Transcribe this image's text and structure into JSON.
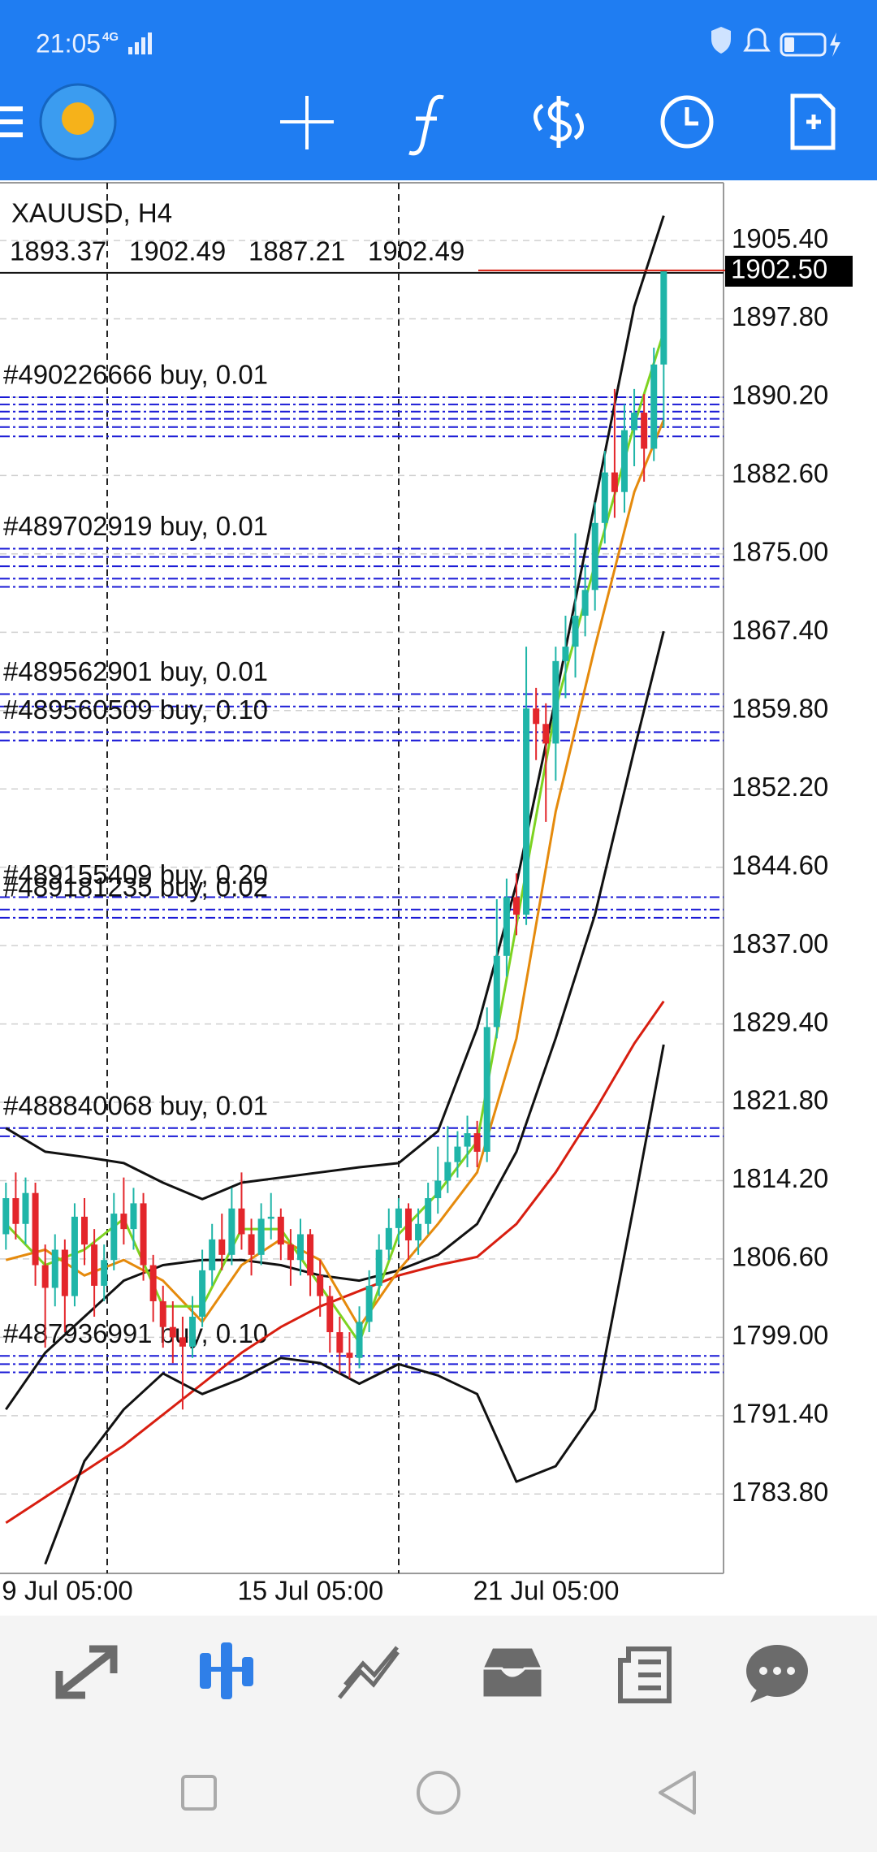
{
  "status_bar": {
    "time": "21:05",
    "network": "4G"
  },
  "chart_data": {
    "type": "candlestick",
    "symbol": "XAUUSD, H4",
    "last_ohlc": [
      1893.37,
      1902.49,
      1887.21,
      1902.49
    ],
    "bull_color": "#1fb5a8",
    "bear_color": "#e3262b",
    "open": [
      1809.0,
      1812.5,
      1810.0,
      1813.0,
      1806.0,
      1803.8,
      1807.5,
      1803.0,
      1810.7,
      1808.0,
      1804.0,
      1806.5,
      1811.0,
      1809.5,
      1812.0,
      1806.0,
      1802.5,
      1800.0,
      1799.0,
      1798.1,
      1801.0,
      1805.5,
      1808.5,
      1807.0,
      1811.5,
      1809.0,
      1807.0,
      1810.5,
      1810.7,
      1808.0,
      1806.5,
      1809.0,
      1805.0,
      1803.0,
      1799.5,
      1797.5,
      1797.0,
      1800.5,
      1804.0,
      1807.5,
      1809.6,
      1811.5,
      1808.4,
      1810.0,
      1812.5,
      1814.2,
      1816.0,
      1817.5,
      1818.8,
      1817.0,
      1829.1,
      1836.0,
      1841.7,
      1840.0,
      1860.0,
      1858.5,
      1856.6,
      1864.6,
      1866.0,
      1869.0,
      1871.5,
      1878.0,
      1882.9,
      1881.0,
      1887.0,
      1888.7,
      1885.2
    ],
    "high": [
      1814.0,
      1815.0,
      1814.5,
      1814.0,
      1808.0,
      1809.0,
      1808.5,
      1812.0,
      1812.5,
      1809.5,
      1808.0,
      1813.0,
      1814.5,
      1813.5,
      1813.0,
      1807.0,
      1804.0,
      1802.5,
      1801.0,
      1803.0,
      1807.5,
      1810.0,
      1811.0,
      1813.5,
      1815.0,
      1810.5,
      1812.0,
      1813.0,
      1811.5,
      1809.5,
      1810.5,
      1809.5,
      1806.5,
      1804.0,
      1801.0,
      1799.5,
      1802.0,
      1805.5,
      1809.0,
      1811.5,
      1812.5,
      1812.0,
      1811.5,
      1814.0,
      1817.5,
      1819.5,
      1819.0,
      1820.5,
      1820.0,
      1831.0,
      1841.5,
      1843.5,
      1844.0,
      1866.0,
      1862.0,
      1860.5,
      1866.0,
      1869.0,
      1877.0,
      1874.0,
      1880.0,
      1885.0,
      1891.0,
      1889.5,
      1891.0,
      1890.5,
      1895.0
    ],
    "low": [
      1807.5,
      1808.5,
      1808.0,
      1804.0,
      1798.0,
      1802.0,
      1799.5,
      1802.0,
      1806.0,
      1801.0,
      1802.5,
      1805.5,
      1808.0,
      1807.5,
      1804.5,
      1800.5,
      1798.0,
      1796.5,
      1792.0,
      1797.0,
      1800.0,
      1804.0,
      1805.5,
      1806.0,
      1807.5,
      1805.0,
      1806.0,
      1808.5,
      1806.5,
      1804.0,
      1805.0,
      1803.0,
      1801.0,
      1797.5,
      1795.5,
      1795.0,
      1796.0,
      1799.5,
      1803.0,
      1806.5,
      1808.0,
      1806.5,
      1807.0,
      1809.0,
      1811.0,
      1813.0,
      1814.5,
      1815.5,
      1815.5,
      1816.0,
      1828.0,
      1834.0,
      1838.0,
      1839.0,
      1855.0,
      1849.0,
      1853.0,
      1861.0,
      1863.0,
      1867.0,
      1869.5,
      1876.0,
      1878.5,
      1879.0,
      1883.5,
      1882.0,
      1884.0
    ],
    "close": [
      1812.5,
      1810.0,
      1813.0,
      1806.0,
      1803.8,
      1807.5,
      1803.0,
      1810.7,
      1808.0,
      1804.0,
      1806.5,
      1811.0,
      1809.5,
      1812.0,
      1806.0,
      1802.5,
      1800.0,
      1799.0,
      1798.1,
      1801.0,
      1805.5,
      1808.5,
      1807.0,
      1811.5,
      1809.0,
      1807.0,
      1810.5,
      1810.7,
      1808.0,
      1806.5,
      1809.0,
      1805.0,
      1803.0,
      1799.5,
      1797.5,
      1797.0,
      1800.5,
      1804.0,
      1807.5,
      1809.6,
      1811.5,
      1808.4,
      1810.0,
      1812.5,
      1814.2,
      1816.0,
      1817.5,
      1818.8,
      1817.0,
      1829.1,
      1836.0,
      1841.7,
      1840.0,
      1860.0,
      1858.5,
      1856.6,
      1864.6,
      1866.0,
      1869.0,
      1871.5,
      1878.0,
      1882.9,
      1881.0,
      1887.0,
      1888.7,
      1885.2,
      1893.37
    ],
    "ylim": [
      1776.1,
      1911.0
    ],
    "yticks": [
      {
        "value": 1905.4,
        "label": "1905.40"
      },
      {
        "value": 1897.8,
        "label": "1897.80"
      },
      {
        "value": 1890.2,
        "label": "1890.20"
      },
      {
        "value": 1882.6,
        "label": "1882.60"
      },
      {
        "value": 1875.0,
        "label": "1875.00"
      },
      {
        "value": 1867.4,
        "label": "1867.40"
      },
      {
        "value": 1859.8,
        "label": "1859.80"
      },
      {
        "value": 1852.2,
        "label": "1852.20"
      },
      {
        "value": 1844.6,
        "label": "1844.60"
      },
      {
        "value": 1837.0,
        "label": "1837.00"
      },
      {
        "value": 1829.4,
        "label": "1829.40"
      },
      {
        "value": 1821.8,
        "label": "1821.80"
      },
      {
        "value": 1814.2,
        "label": "1814.20"
      },
      {
        "value": 1806.6,
        "label": "1806.60"
      },
      {
        "value": 1799.0,
        "label": "1799.00"
      },
      {
        "value": 1791.4,
        "label": "1791.40"
      },
      {
        "value": 1783.8,
        "label": "1783.80"
      }
    ],
    "grid": true,
    "xticks": [
      {
        "value": 0,
        "label": "9 Jul 05:00"
      },
      {
        "value": 24,
        "label": "15 Jul 05:00"
      },
      {
        "value": 48,
        "label": "21 Jul 05:00"
      }
    ],
    "current_price": {
      "value": 1902.5,
      "label": "1902.50"
    },
    "indicators": {
      "x": [
        0,
        4,
        8,
        12,
        16,
        20,
        24,
        28,
        32,
        36,
        40,
        44,
        48,
        52,
        56,
        60,
        64,
        67
      ],
      "series": [
        {
          "color": "#d81e10",
          "values": [
            1781.0,
            1783.5,
            1786.0,
            1788.5,
            1791.5,
            1794.5,
            1797.5,
            1800.0,
            1802.0,
            1803.5,
            1805.0,
            1806.0,
            1806.8,
            1810.0,
            1815.0,
            1821.0,
            1827.5,
            1831.6
          ]
        },
        {
          "color": "#111111",
          "values": [
            1819.3,
            1817.0,
            1816.5,
            1815.9,
            1814.0,
            1812.4,
            1814.0,
            1814.5,
            1815.0,
            1815.5,
            1815.9,
            1819.0,
            1829.0,
            1843.0,
            1861.0,
            1880.0,
            1899.0,
            1907.8
          ]
        },
        {
          "color": "#111111",
          "values": [
            1792.0,
            1797.5,
            1801.0,
            1804.5,
            1806.0,
            1806.5,
            1806.5,
            1806.0,
            1805.0,
            1804.5,
            1805.5,
            1807.0,
            1810.0,
            1817.0,
            1828.0,
            1840.0,
            1856.0,
            1867.5
          ]
        },
        {
          "color": "#111111",
          "values": [
            null,
            1777.0,
            1787.0,
            1792.0,
            1795.5,
            1793.5,
            1795.0,
            1797.0,
            1796.5,
            1794.5,
            1796.4,
            1795.3,
            1793.5,
            1785.0,
            1786.5,
            1792.0,
            1812.0,
            1827.4
          ]
        },
        {
          "color": "#e58a0c",
          "values": [
            1806.5,
            1807.5,
            1805.0,
            1806.5,
            1804.5,
            1800.5,
            1806.0,
            1808.5,
            1806.5,
            1800.0,
            1805.5,
            1810.0,
            1815.0,
            1828.0,
            1850.0,
            1866.0,
            1881.0,
            1888.0
          ]
        },
        {
          "color": "#7ed321",
          "values": [
            1810.0,
            1806.0,
            1807.5,
            1810.5,
            1802.0,
            1802.0,
            1809.5,
            1809.5,
            1804.0,
            1798.5,
            1809.0,
            1813.0,
            1818.0,
            1839.0,
            1860.0,
            1874.0,
            1887.5,
            1896.5
          ]
        }
      ]
    },
    "order_color": "#1a1ad6",
    "orders": [
      {
        "label": "#490226666 buy, 0.01",
        "price": 1890.2
      },
      {
        "label": "#489702919 buy, 0.01",
        "price": 1875.5
      },
      {
        "label": "#489562901 buy, 0.01",
        "price": 1861.4
      },
      {
        "label": "#489560509 buy, 0.10",
        "price": 1857.7
      },
      {
        "label": "#489155409 buy, 0.20",
        "price": 1841.7
      },
      {
        "label": "#489181235 buy, 0.02",
        "price": 1840.5
      },
      {
        "label": "#488840068 buy, 0.01",
        "price": 1819.3
      },
      {
        "label": "#487936991 buy, 0.10",
        "price": 1797.2
      }
    ],
    "levels": [
      1889.5,
      1888.8,
      1888.1,
      1887.3,
      1886.4,
      1874.7,
      1873.8,
      1872.6,
      1871.8,
      1860.2,
      1856.9,
      1839.7,
      1818.5,
      1796.4,
      1795.6
    ]
  }
}
